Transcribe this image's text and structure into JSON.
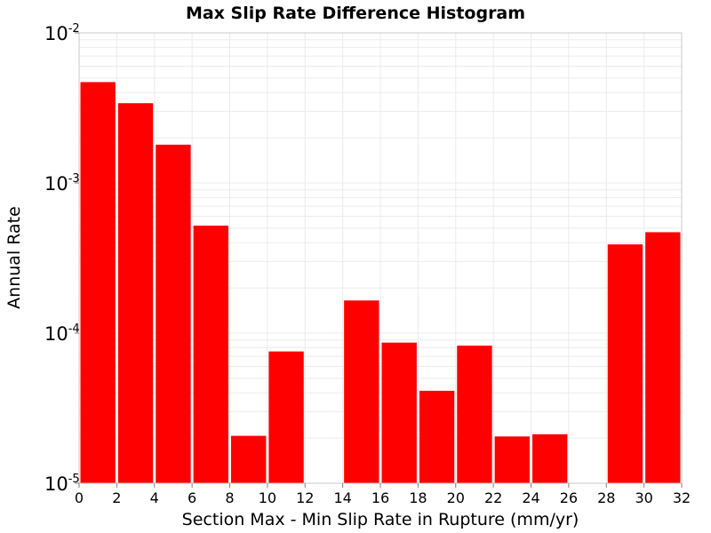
{
  "chart_data": {
    "type": "bar",
    "title": "Max Slip Rate Difference Histogram",
    "xlabel": "Section Max - Min Slip Rate in Rupture (mm/yr)",
    "ylabel": "Annual Rate",
    "xlim": [
      0,
      32
    ],
    "ylim": [
      1e-05,
      0.01
    ],
    "yscale": "log",
    "bin_width": 2,
    "x_ticks": [
      0,
      2,
      4,
      6,
      8,
      10,
      12,
      14,
      16,
      18,
      20,
      22,
      24,
      26,
      28,
      30,
      32
    ],
    "y_ticks": [
      {
        "base": "10",
        "exp": "-5",
        "value": 1e-05
      },
      {
        "base": "10",
        "exp": "-4",
        "value": 0.0001
      },
      {
        "base": "10",
        "exp": "-3",
        "value": 0.001
      },
      {
        "base": "10",
        "exp": "-2",
        "value": 0.01
      }
    ],
    "bin_centers": [
      1,
      3,
      5,
      7,
      9,
      11,
      13,
      15,
      17,
      19,
      21,
      23,
      25,
      27,
      29,
      31
    ],
    "values": [
      0.0047,
      0.0034,
      0.0018,
      0.00052,
      2.07e-05,
      7.55e-05,
      0,
      0.000165,
      8.65e-05,
      4.13e-05,
      8.25e-05,
      2.05e-05,
      2.12e-05,
      0,
      0.00039,
      0.00047
    ],
    "bar_color": "#ff0000",
    "grid": true,
    "grid_color": "#ebebeb"
  }
}
